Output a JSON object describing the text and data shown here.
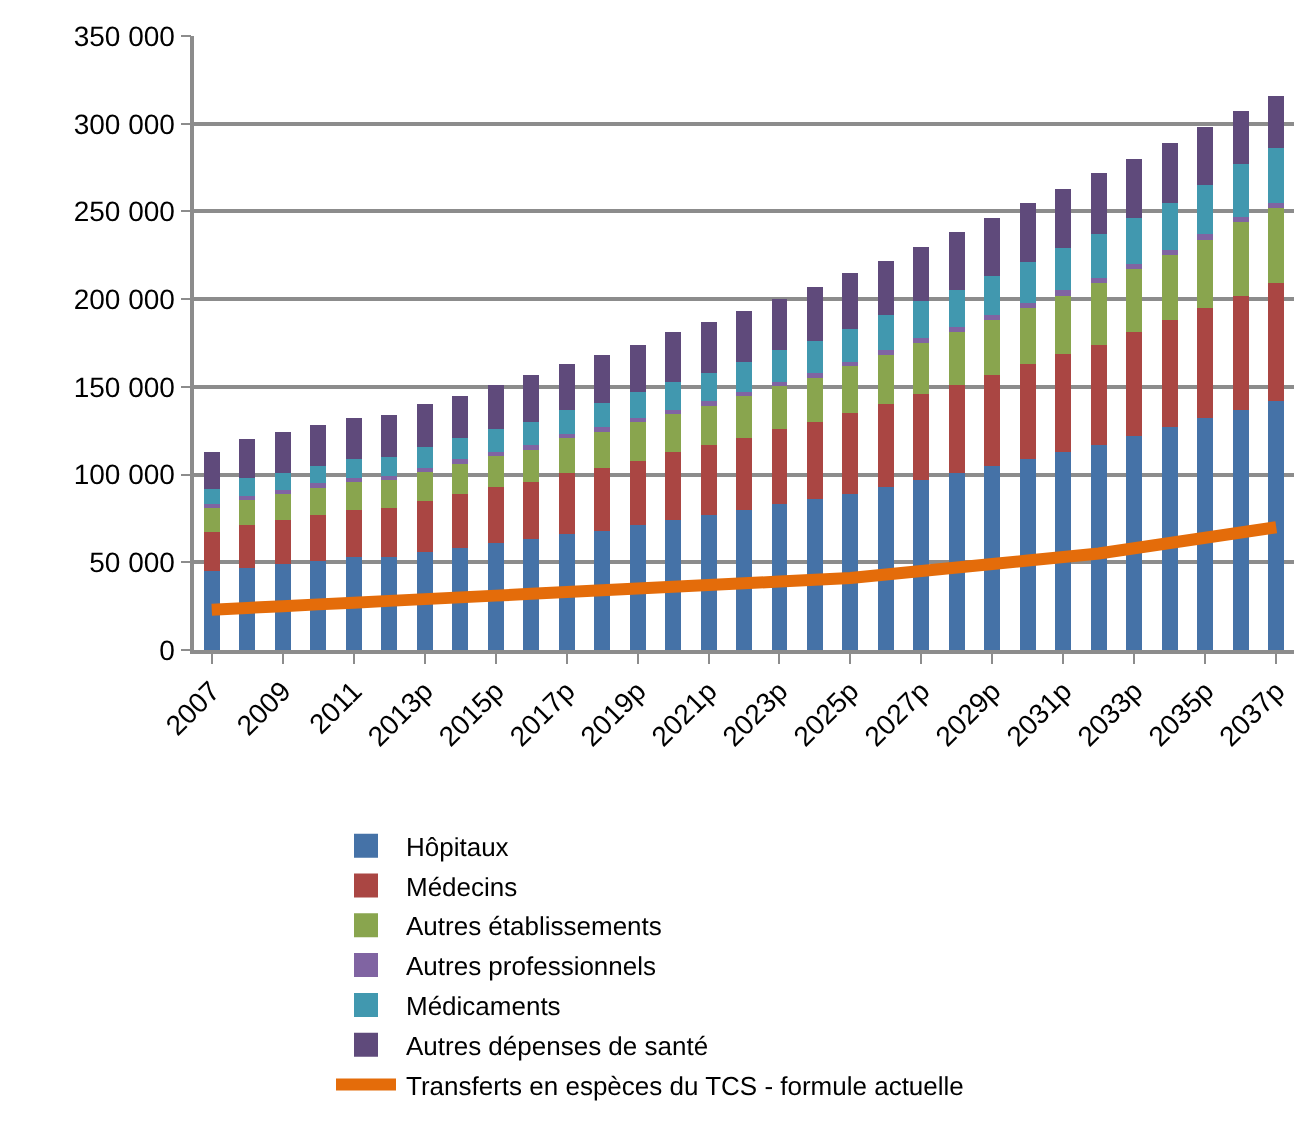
{
  "chart_data": {
    "type": "bar",
    "stacked": true,
    "categories": [
      "2007",
      null,
      "2009",
      null,
      "2011",
      null,
      "2013p",
      null,
      "2015p",
      null,
      "2017p",
      null,
      "2019p",
      null,
      "2021p",
      null,
      "2023p",
      null,
      "2025p",
      null,
      "2027p",
      null,
      "2029p",
      null,
      "2031p",
      null,
      "2033p",
      null,
      "2035p",
      null,
      "2037p"
    ],
    "series": [
      {
        "name": "Hôpitaux",
        "color": "#4572a7",
        "values": [
          45000,
          47000,
          49000,
          51000,
          53000,
          53000,
          56000,
          58000,
          61000,
          63000,
          66000,
          68000,
          71000,
          74000,
          77000,
          80000,
          83000,
          86000,
          89000,
          93000,
          97000,
          101000,
          105000,
          109000,
          113000,
          117000,
          122000,
          127000,
          132000,
          137000,
          142000
        ]
      },
      {
        "name": "Médecins",
        "color": "#aa4643",
        "values": [
          22000,
          24000,
          25000,
          26000,
          27000,
          28000,
          29000,
          31000,
          32000,
          33000,
          35000,
          36000,
          37000,
          39000,
          40000,
          41000,
          43000,
          44000,
          46000,
          47000,
          49000,
          50000,
          52000,
          54000,
          56000,
          57000,
          59000,
          61000,
          63000,
          65000,
          67000
        ]
      },
      {
        "name": "Autres établissements",
        "color": "#89a54e",
        "values": [
          14000,
          15000,
          15000,
          16000,
          16000,
          16000,
          17000,
          18000,
          18000,
          19000,
          20000,
          21000,
          22000,
          22000,
          23000,
          24000,
          25000,
          26000,
          27000,
          28000,
          29000,
          30000,
          31000,
          32000,
          33000,
          35000,
          36000,
          37000,
          39000,
          42000,
          43000
        ]
      },
      {
        "name": "Autres professionnels",
        "color": "#8064a2",
        "values": [
          2000,
          2000,
          2000,
          2000,
          2000,
          2000,
          2000,
          2000,
          2000,
          2000,
          2000,
          2000,
          2000,
          2000,
          2000,
          2000,
          2000,
          2000,
          2000,
          3000,
          3000,
          3000,
          3000,
          3000,
          3000,
          3000,
          3000,
          3000,
          3000,
          3000,
          3000
        ]
      },
      {
        "name": "Médicaments",
        "color": "#4198af",
        "values": [
          9000,
          10000,
          10000,
          10000,
          11000,
          11000,
          12000,
          12000,
          13000,
          13000,
          14000,
          14000,
          15000,
          16000,
          16000,
          17000,
          18000,
          18000,
          19000,
          20000,
          21000,
          21000,
          22000,
          23000,
          24000,
          25000,
          26000,
          27000,
          28000,
          30000,
          31000
        ]
      },
      {
        "name": "Autres dépenses de santé",
        "color": "#5f4a7b",
        "values": [
          21000,
          22000,
          23000,
          23000,
          23000,
          24000,
          24000,
          24000,
          25000,
          27000,
          26000,
          27000,
          27000,
          28000,
          29000,
          29000,
          29000,
          31000,
          32000,
          31000,
          31000,
          33000,
          33000,
          34000,
          34000,
          35000,
          34000,
          34000,
          33000,
          30000,
          30000
        ]
      },
      {
        "name": "Transferts en espèces du TCS - formule actuelle",
        "type": "line",
        "color": "#e46c0a",
        "values": [
          23000,
          24000,
          25000,
          26000,
          27000,
          28000,
          29000,
          30000,
          31000,
          32000,
          33000,
          34000,
          35000,
          36000,
          37000,
          38000,
          39000,
          40000,
          41000,
          43000,
          45000,
          47000,
          49000,
          51000,
          53000,
          55000,
          58000,
          61000,
          64000,
          67000,
          70000
        ]
      }
    ],
    "ylim": [
      0,
      350000
    ],
    "yticks": [
      {
        "value": 0,
        "label": "0"
      },
      {
        "value": 50000,
        "label": "50 000"
      },
      {
        "value": 100000,
        "label": "100 000"
      },
      {
        "value": 150000,
        "label": "150 000"
      },
      {
        "value": 200000,
        "label": "200 000"
      },
      {
        "value": 250000,
        "label": "250 000"
      },
      {
        "value": 300000,
        "label": "300 000"
      },
      {
        "value": 350000,
        "label": "350 000"
      }
    ],
    "grid": "y",
    "legend": "bottom",
    "marker": "none",
    "line_style": "solid"
  }
}
